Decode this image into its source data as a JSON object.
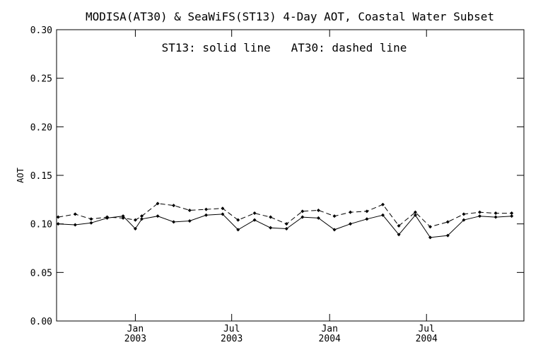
{
  "chart_data": {
    "type": "line",
    "title": "MODISA(AT30) & SeaWiFS(ST13) 4-Day AOT, Coastal Water Subset",
    "ylabel": "AOT",
    "xlabel": "",
    "annotation": "ST13: solid line   AT30: dashed line",
    "ylim": [
      0.0,
      0.3
    ],
    "yticks": [
      "0.00",
      "0.05",
      "0.10",
      "0.15",
      "0.20",
      "0.25",
      "0.30"
    ],
    "xlim": [
      "2002-08-06",
      "2004-12-31"
    ],
    "xticks": [
      {
        "date": "2003-01-01",
        "line1": "Jan",
        "line2": "2003"
      },
      {
        "date": "2003-07-01",
        "line1": "Jul",
        "line2": "2003"
      },
      {
        "date": "2004-01-01",
        "line1": "Jan",
        "line2": "2004"
      },
      {
        "date": "2004-07-01",
        "line1": "Jul",
        "line2": "2004"
      }
    ],
    "grid": false,
    "x": [
      "2002-08-09",
      "2002-09-10",
      "2002-10-10",
      "2002-11-09",
      "2002-12-09",
      "2003-01-01",
      "2003-01-13",
      "2003-02-12",
      "2003-03-14",
      "2003-04-13",
      "2003-05-14",
      "2003-06-14",
      "2003-07-13",
      "2003-08-13",
      "2003-09-12",
      "2003-10-12",
      "2003-11-11",
      "2003-12-11",
      "2004-01-10",
      "2004-02-09",
      "2004-03-11",
      "2004-04-10",
      "2004-05-10",
      "2004-06-10",
      "2004-07-08",
      "2004-08-10",
      "2004-09-09",
      "2004-10-09",
      "2004-11-08",
      "2004-12-08"
    ],
    "series": [
      {
        "name": "ST13",
        "line": "solid",
        "color": "#000000",
        "values": [
          0.1,
          0.099,
          0.101,
          0.106,
          0.108,
          0.095,
          0.105,
          0.108,
          0.102,
          0.103,
          0.109,
          0.11,
          0.094,
          0.104,
          0.096,
          0.095,
          0.107,
          0.106,
          0.094,
          0.1,
          0.105,
          0.109,
          0.089,
          0.109,
          0.086,
          0.088,
          0.104,
          0.108,
          0.107,
          0.108
        ]
      },
      {
        "name": "AT30",
        "line": "dashed",
        "color": "#000000",
        "values": [
          0.107,
          0.11,
          0.105,
          0.107,
          0.106,
          0.104,
          0.108,
          0.121,
          0.119,
          0.114,
          0.115,
          0.116,
          0.104,
          0.111,
          0.107,
          0.1,
          0.113,
          0.114,
          0.108,
          0.112,
          0.113,
          0.12,
          0.098,
          0.112,
          0.097,
          0.102,
          0.11,
          0.112,
          0.111,
          0.111
        ]
      }
    ]
  }
}
